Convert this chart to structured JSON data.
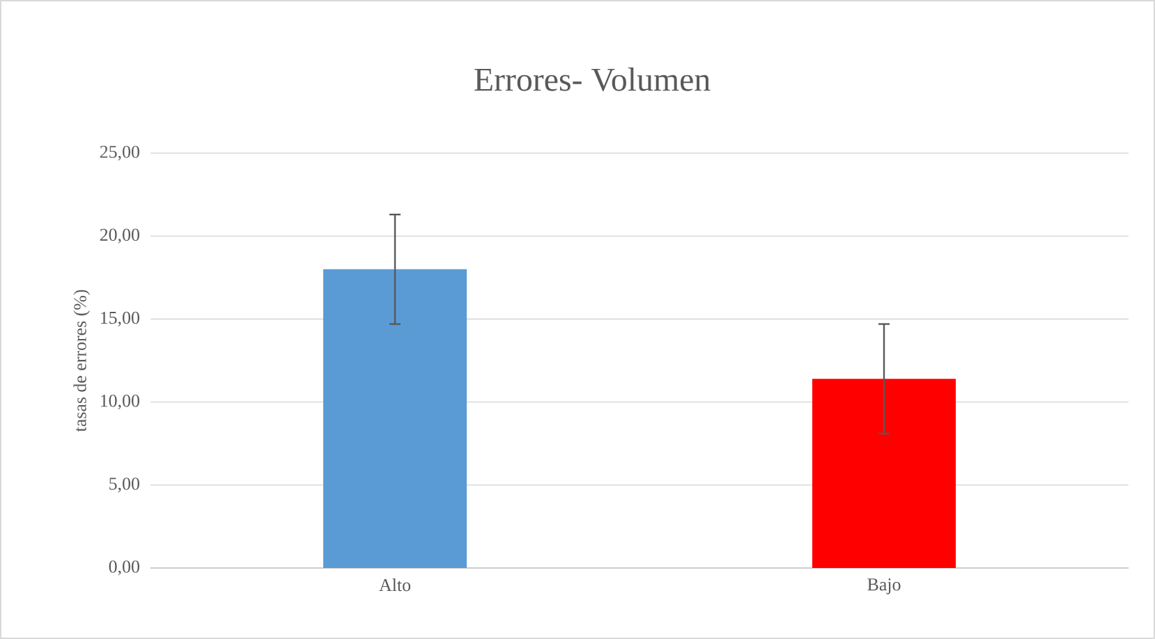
{
  "chart_data": {
    "type": "bar",
    "title": "Errores- Volumen",
    "ylabel": "tasas de errores (%)",
    "categories": [
      "Alto",
      "Bajo"
    ],
    "values": [
      18.0,
      11.4
    ],
    "colors": [
      "#5b9bd5",
      "#ff0000"
    ],
    "errors": [
      3.3,
      3.3
    ],
    "ylim": [
      0,
      25
    ],
    "yticks": [
      {
        "value": 0,
        "label": "0,00"
      },
      {
        "value": 5,
        "label": "5,00"
      },
      {
        "value": 10,
        "label": "10,00"
      },
      {
        "value": 15,
        "label": "15,00"
      },
      {
        "value": 20,
        "label": "20,00"
      },
      {
        "value": 25,
        "label": "25,00"
      }
    ],
    "grid": "y"
  }
}
